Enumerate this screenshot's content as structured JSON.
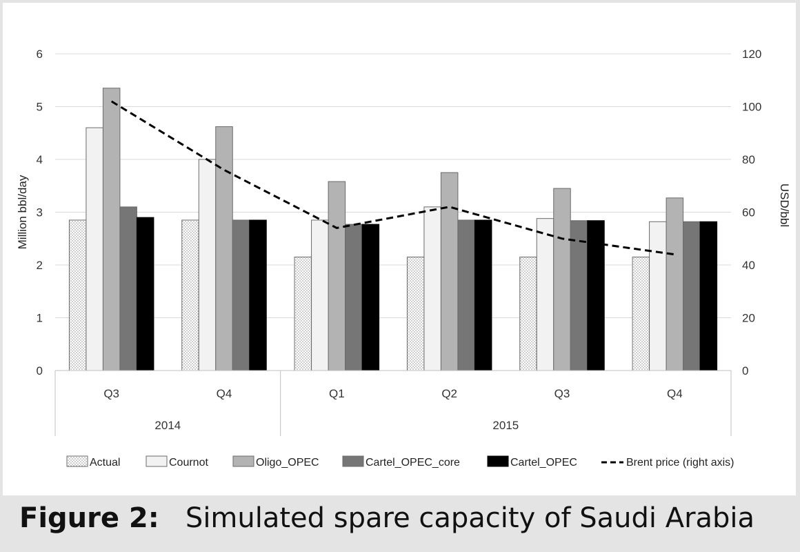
{
  "caption": {
    "label": "Figure 2:",
    "text": "Simulated spare capacity of Saudi Arabia"
  },
  "chart_data": {
    "type": "bar",
    "title": "",
    "ylabel": "Million bbl/day",
    "y2label": "USD/bbl",
    "ylim": [
      0,
      6
    ],
    "y2lim": [
      0,
      120
    ],
    "yticks": [
      0,
      1,
      2,
      3,
      4,
      5,
      6
    ],
    "y2ticks": [
      0,
      20,
      40,
      60,
      80,
      100,
      120
    ],
    "grid": true,
    "legend_position": "bottom",
    "categories": [
      "Q3",
      "Q4",
      "Q1",
      "Q2",
      "Q3",
      "Q4"
    ],
    "groups": [
      {
        "label": "2014",
        "span": 2
      },
      {
        "label": "2015",
        "span": 4
      }
    ],
    "series": [
      {
        "name": "Actual",
        "style": "dotted",
        "color": "#ffffff",
        "values": [
          2.85,
          2.85,
          2.15,
          2.15,
          2.15,
          2.15
        ]
      },
      {
        "name": "Cournot",
        "style": "solid",
        "color": "#f2f2f2",
        "values": [
          4.6,
          4.0,
          2.85,
          3.1,
          2.88,
          2.82
        ]
      },
      {
        "name": "Oligo_OPEC",
        "style": "solid",
        "color": "#b3b3b3",
        "values": [
          5.35,
          4.62,
          3.58,
          3.75,
          3.45,
          3.27
        ]
      },
      {
        "name": "Cartel_OPEC_core",
        "style": "solid",
        "color": "#767676",
        "values": [
          3.1,
          2.85,
          2.77,
          2.85,
          2.84,
          2.82
        ]
      },
      {
        "name": "Cartel_OPEC",
        "style": "solid",
        "color": "#000000",
        "values": [
          2.9,
          2.85,
          2.77,
          2.85,
          2.84,
          2.82
        ]
      }
    ],
    "line_series": {
      "name": "Brent price (right axis)",
      "axis": "right",
      "style": "dashed",
      "color": "#000000",
      "values": [
        102,
        76,
        54,
        62,
        50,
        44
      ]
    }
  }
}
